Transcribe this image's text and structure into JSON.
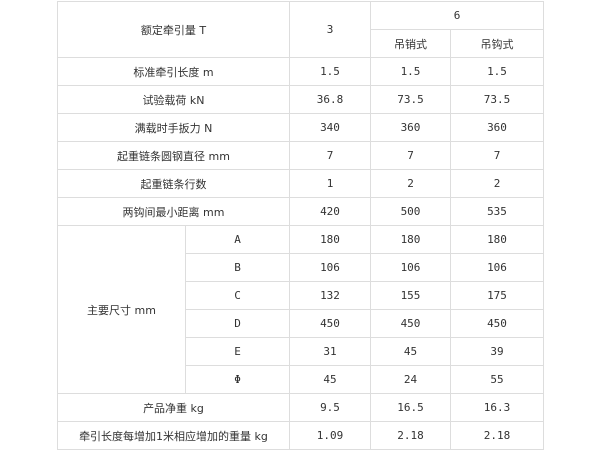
{
  "header": {
    "rated": "额定牵引量 T",
    "col3": "3",
    "col6": "6",
    "sub1": "吊销式",
    "sub2": "吊钩式"
  },
  "rows": [
    {
      "label": "标准牵引长度 m",
      "values": [
        "1.5",
        "1.5",
        "1.5"
      ]
    },
    {
      "label": "试验载荷 kN",
      "values": [
        "36.8",
        "73.5",
        "73.5"
      ]
    },
    {
      "label": "满载时手扳力 N",
      "values": [
        "340",
        "360",
        "360"
      ]
    },
    {
      "label": "起重链条圆钢直径 mm",
      "values": [
        "7",
        "7",
        "7"
      ]
    },
    {
      "label": "起重链条行数",
      "values": [
        "1",
        "2",
        "2"
      ]
    },
    {
      "label": "两钩间最小距离 mm",
      "values": [
        "420",
        "500",
        "535"
      ]
    }
  ],
  "dims": {
    "label": "主要尺寸 mm",
    "rows": [
      {
        "key": "A",
        "values": [
          "180",
          "180",
          "180"
        ]
      },
      {
        "key": "B",
        "values": [
          "106",
          "106",
          "106"
        ]
      },
      {
        "key": "C",
        "values": [
          "132",
          "155",
          "175"
        ]
      },
      {
        "key": "D",
        "values": [
          "450",
          "450",
          "450"
        ]
      },
      {
        "key": "E",
        "values": [
          "31",
          "45",
          "39"
        ]
      },
      {
        "key": "Φ",
        "values": [
          "45",
          "24",
          "55"
        ]
      }
    ]
  },
  "footer": [
    {
      "label": "产品净重 kg",
      "values": [
        "9.5",
        "16.5",
        "16.3"
      ]
    },
    {
      "label": "牵引长度每增加1米相应增加的重量 kg",
      "values": [
        "1.09",
        "2.18",
        "2.18"
      ]
    }
  ]
}
